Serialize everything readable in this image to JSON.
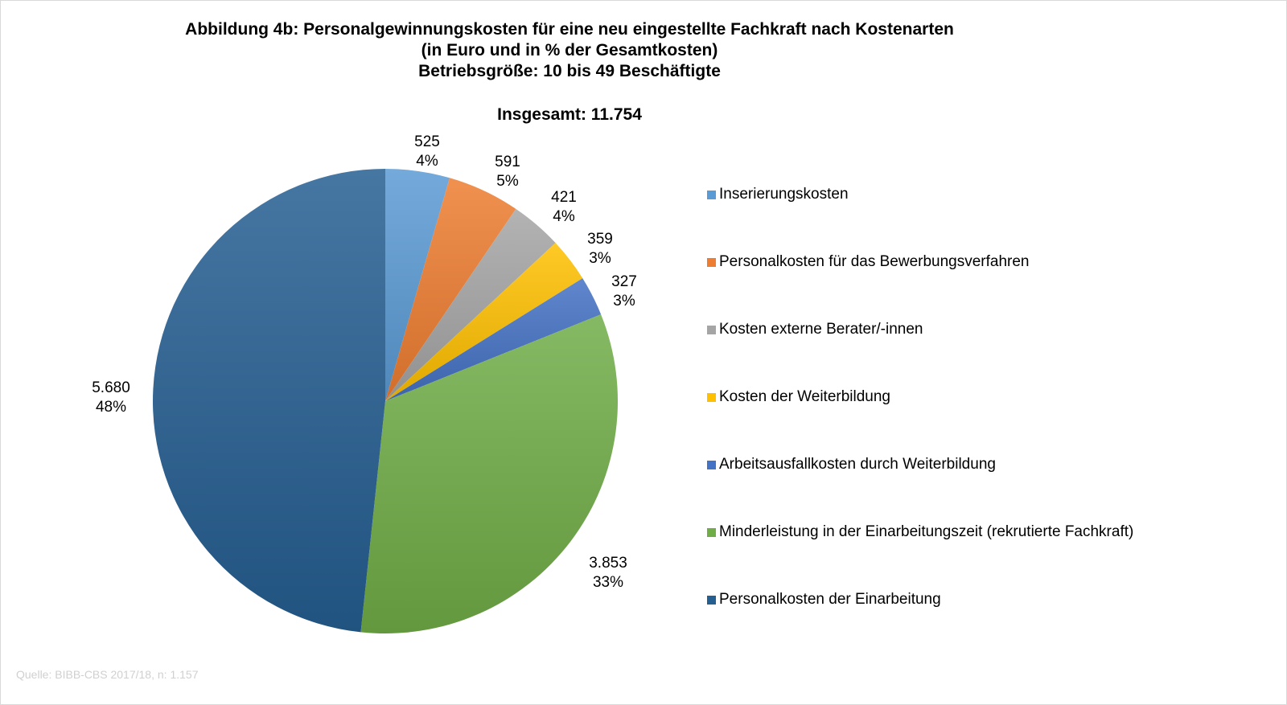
{
  "title_lines": [
    "Abbildung 4b: Personalgewinnungskosten für eine neu eingestellte Fachkraft nach Kostenarten",
    "(in Euro und in % der Gesamtkosten)",
    "Betriebsgröße: 10 bis 49 Beschäftigte"
  ],
  "total_label": "Insgesamt: 11.754",
  "source": "Quelle: BIBB-CBS 2017/18, n: 1.157",
  "chart_data": {
    "type": "pie",
    "title": "Abbildung 4b: Personalgewinnungskosten für eine neu eingestellte Fachkraft nach Kostenarten (in Euro und in % der Gesamtkosten) Betriebsgröße: 10 bis 49 Beschäftigte",
    "start_angle": "top, clockwise",
    "legend_position": "right",
    "slices": [
      {
        "label": "Inserierungskosten",
        "value": 525,
        "value_label": "525",
        "percent_label": "4%",
        "color": "#5b9bd5"
      },
      {
        "label": "Personalkosten für das Bewerbungsverfahren",
        "value": 591,
        "value_label": "591",
        "percent_label": "5%",
        "color": "#ed7d31"
      },
      {
        "label": "Kosten externe Berater/-innen",
        "value": 421,
        "value_label": "421",
        "percent_label": "4%",
        "color": "#a5a5a5"
      },
      {
        "label": "Kosten der Weiterbildung",
        "value": 359,
        "value_label": "359",
        "percent_label": "3%",
        "color": "#ffc000"
      },
      {
        "label": "Arbeitsausfallkosten durch Weiterbildung",
        "value": 327,
        "value_label": "327",
        "percent_label": "3%",
        "color": "#4472c4"
      },
      {
        "label": "Minderleistung in der Einarbeitungszeit (rekrutierte Fachkraft)",
        "value": 3853,
        "value_label": "3.853",
        "percent_label": "33%",
        "color": "#70ad47"
      },
      {
        "label": "Personalkosten der Einarbeitung",
        "value": 5680,
        "value_label": "5.680",
        "percent_label": "48%",
        "color": "#255e91"
      }
    ]
  }
}
